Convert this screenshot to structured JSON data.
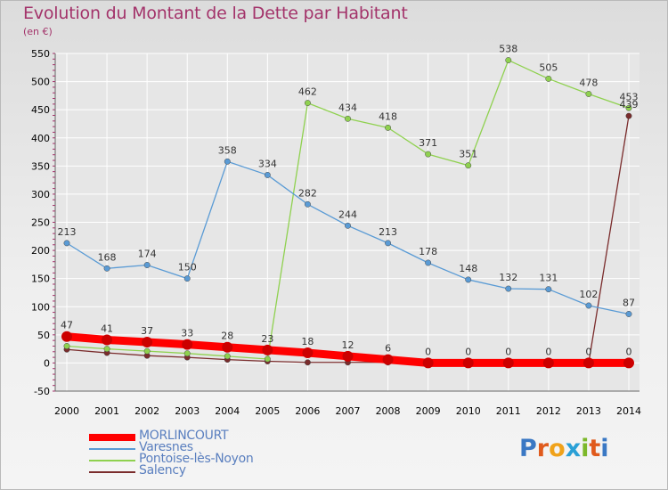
{
  "page": {
    "title": "Evolution du Montant de la Dette par Habitant",
    "unit": "(en €)"
  },
  "logo": {
    "text": "Proxiti",
    "letter_colors": [
      "#3a78c4",
      "#e05a1c",
      "#f0a21a",
      "#2aa0d6",
      "#7cb82a",
      "#e05a1c",
      "#3a78c4"
    ]
  },
  "colors": {
    "title": "#a3336a",
    "axis_text": "#000000",
    "grid": "#ffffff",
    "legend_text": "#5a7fbf"
  },
  "chart_data": {
    "type": "line",
    "title": "Evolution du Montant de la Dette par Habitant",
    "ylabel": "(en €)",
    "xlabel": "",
    "x": [
      "2000",
      "2001",
      "2002",
      "2003",
      "2004",
      "2005",
      "2006",
      "2007",
      "2008",
      "2009",
      "2010",
      "2011",
      "2012",
      "2013",
      "2014"
    ],
    "ylim": [
      -50,
      550
    ],
    "yticks": [
      -50,
      0,
      50,
      100,
      150,
      200,
      250,
      300,
      350,
      400,
      450,
      500,
      550
    ],
    "grid": true,
    "legend_position": "bottom-left",
    "series": [
      {
        "name": "MORLINCOURT",
        "color": "#ff0000",
        "values": [
          47,
          41,
          37,
          33,
          28,
          23,
          18,
          12,
          6,
          0,
          0,
          0,
          0,
          0,
          0
        ],
        "labels": [
          "47",
          "41",
          "37",
          "33",
          "28",
          "23",
          "18",
          "12",
          "6",
          "0",
          "0",
          "0",
          "0",
          "0",
          "0"
        ]
      },
      {
        "name": "Varesnes",
        "color": "#5a9bd5",
        "values": [
          213,
          168,
          174,
          150,
          358,
          334,
          282,
          244,
          213,
          178,
          148,
          132,
          131,
          102,
          87
        ],
        "labels": [
          "213",
          "168",
          "174",
          "150",
          "358",
          "334",
          "282",
          "244",
          "213",
          "178",
          "148",
          "132",
          "131",
          "102",
          "87"
        ]
      },
      {
        "name": "Pontoise-lès-Noyon",
        "color": "#8fd14f",
        "values": [
          30,
          25,
          21,
          17,
          12,
          7,
          462,
          434,
          418,
          371,
          351,
          538,
          505,
          478,
          453
        ],
        "labels": [
          "",
          "",
          "",
          "",
          "",
          "",
          "462",
          "434",
          "418",
          "371",
          "351",
          "538",
          "505",
          "478",
          "453"
        ]
      },
      {
        "name": "Salency",
        "color": "#7a2c2c",
        "values": [
          24,
          18,
          13,
          10,
          6,
          3,
          1,
          1,
          1,
          0,
          0,
          0,
          0,
          0,
          439
        ],
        "labels": [
          "",
          "",
          "",
          "",
          "",
          "",
          "",
          "",
          "",
          "",
          "",
          "",
          "",
          "",
          "439"
        ]
      }
    ]
  }
}
